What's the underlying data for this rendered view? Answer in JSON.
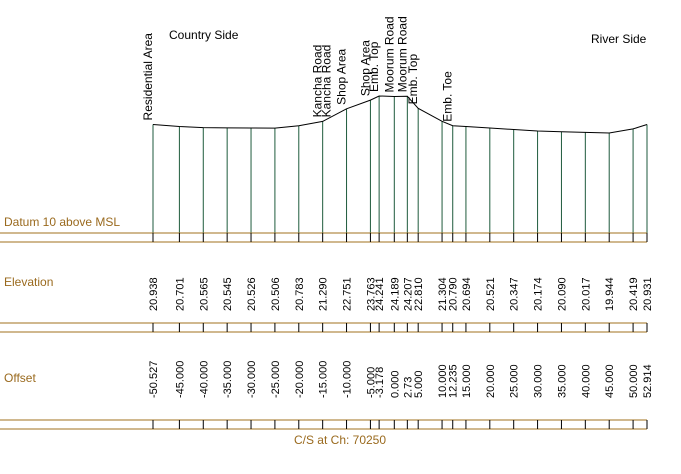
{
  "diagram": {
    "title": "C/S at Ch: 70250",
    "left_side_label": "Country Side",
    "right_side_label": "River Side",
    "datum_label": "Datum 10 above MSL",
    "elevation_row_label": "Elevation",
    "offset_row_label": "Offset",
    "colors": {
      "row_label": "#9a6a1e",
      "band_line": "#a0701e",
      "station_line": "#1e5a3c",
      "profile": "#000000",
      "text": "#000000"
    }
  },
  "points": [
    {
      "offset": -50.527,
      "elevation": 20.938,
      "offset_label": "-50.527",
      "elevation_label": "20.938"
    },
    {
      "offset": -45.0,
      "elevation": 20.701,
      "offset_label": "-45.000",
      "elevation_label": "20.701"
    },
    {
      "offset": -40.0,
      "elevation": 20.565,
      "offset_label": "-40.000",
      "elevation_label": "20.565"
    },
    {
      "offset": -35.0,
      "elevation": 20.545,
      "offset_label": "-35.000",
      "elevation_label": "20.545"
    },
    {
      "offset": -30.0,
      "elevation": 20.526,
      "offset_label": "-30.000",
      "elevation_label": "20.526"
    },
    {
      "offset": -25.0,
      "elevation": 20.506,
      "offset_label": "-25.000",
      "elevation_label": "20.506"
    },
    {
      "offset": -20.0,
      "elevation": 20.783,
      "offset_label": "-20.000",
      "elevation_label": "20.783"
    },
    {
      "offset": -15.0,
      "elevation": 21.29,
      "offset_label": "-15.000",
      "elevation_label": "21.290"
    },
    {
      "offset": -10.0,
      "elevation": 22.751,
      "offset_label": "-10.000",
      "elevation_label": "22.751"
    },
    {
      "offset": -5.0,
      "elevation": 23.763,
      "offset_label": "-5.000",
      "elevation_label": "23.763"
    },
    {
      "offset": -3.178,
      "elevation": 24.241,
      "offset_label": "-3.178",
      "elevation_label": "24.241"
    },
    {
      "offset": 0.0,
      "elevation": 24.189,
      "offset_label": "0.000",
      "elevation_label": "24.189"
    },
    {
      "offset": 2.73,
      "elevation": 24.207,
      "offset_label": "2.73",
      "elevation_label": "24.207"
    },
    {
      "offset": 5.0,
      "elevation": 22.81,
      "offset_label": "5.000",
      "elevation_label": "22.810"
    },
    {
      "offset": 10.0,
      "elevation": 21.304,
      "offset_label": "10.000",
      "elevation_label": "21.304"
    },
    {
      "offset": 12.235,
      "elevation": 20.79,
      "offset_label": "12.235",
      "elevation_label": "20.790"
    },
    {
      "offset": 15.0,
      "elevation": 20.694,
      "offset_label": "15.000",
      "elevation_label": "20.694"
    },
    {
      "offset": 20.0,
      "elevation": 20.521,
      "offset_label": "20.000",
      "elevation_label": "20.521"
    },
    {
      "offset": 25.0,
      "elevation": 20.347,
      "offset_label": "25.000",
      "elevation_label": "20.347"
    },
    {
      "offset": 30.0,
      "elevation": 20.174,
      "offset_label": "30.000",
      "elevation_label": "20.174"
    },
    {
      "offset": 35.0,
      "elevation": 20.09,
      "offset_label": "35.000",
      "elevation_label": "20.090"
    },
    {
      "offset": 40.0,
      "elevation": 20.017,
      "offset_label": "40.000",
      "elevation_label": "20.017"
    },
    {
      "offset": 45.0,
      "elevation": 19.944,
      "offset_label": "45.000",
      "elevation_label": "19.944"
    },
    {
      "offset": 50.0,
      "elevation": 20.419,
      "offset_label": "50.000",
      "elevation_label": "20.419"
    },
    {
      "offset": 52.914,
      "elevation": 20.931,
      "offset_label": "52.914",
      "elevation_label": "20.931"
    }
  ],
  "features": [
    {
      "offset": -50.527,
      "label": "Residential Area"
    },
    {
      "offset": -15.0,
      "label": "Kancha Road"
    },
    {
      "offset": -15.0,
      "label": "Kancha Road"
    },
    {
      "offset": -10.0,
      "label": "Shop Area"
    },
    {
      "offset": -5.0,
      "label": "Shop Area"
    },
    {
      "offset": -3.178,
      "label": "Emb. Top"
    },
    {
      "offset": 0.0,
      "label": "Moorum Road"
    },
    {
      "offset": 2.73,
      "label": "Moorum Road"
    },
    {
      "offset": 5.0,
      "label": "Emb. Top"
    },
    {
      "offset": 12.235,
      "label": "Emb. Toe"
    }
  ]
}
